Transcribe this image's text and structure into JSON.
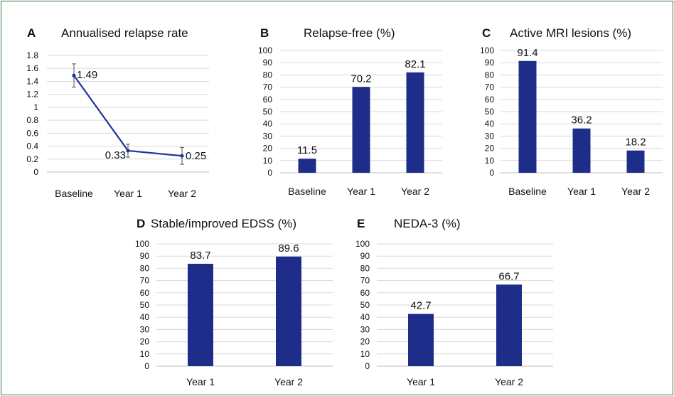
{
  "chart_data": [
    {
      "id": "A",
      "type": "line",
      "letter": "A",
      "title": "Annualised relapse rate",
      "categories": [
        "Baseline",
        "Year 1",
        "Year 2"
      ],
      "values": [
        1.49,
        0.33,
        0.25
      ],
      "error": [
        0.18,
        0.1,
        0.13
      ],
      "data_labels": [
        "1.49",
        "0.33",
        "0.25"
      ],
      "ylim": [
        0,
        1.8
      ],
      "yticks": [
        "0",
        "0.2",
        "0.4",
        "0.6",
        "0.8",
        "1",
        "1.2",
        "1.4",
        "1.6",
        "1.8"
      ],
      "grid": true,
      "color": "#2233a0"
    },
    {
      "id": "B",
      "type": "bar",
      "letter": "B",
      "title": "Relapse-free (%)",
      "categories": [
        "Baseline",
        "Year 1",
        "Year 2"
      ],
      "values": [
        11.5,
        70.2,
        82.1
      ],
      "data_labels": [
        "11.5",
        "70.2",
        "82.1"
      ],
      "ylim": [
        0,
        100
      ],
      "yticks": [
        "0",
        "10",
        "20",
        "30",
        "40",
        "50",
        "60",
        "70",
        "80",
        "90",
        "100"
      ],
      "grid": true,
      "color": "#1f2d8a"
    },
    {
      "id": "C",
      "type": "bar",
      "letter": "C",
      "title": "Active MRI lesions (%)",
      "categories": [
        "Baseline",
        "Year 1",
        "Year 2"
      ],
      "values": [
        91.4,
        36.2,
        18.2
      ],
      "data_labels": [
        "91.4",
        "36.2",
        "18.2"
      ],
      "ylim": [
        0,
        100
      ],
      "yticks": [
        "0",
        "10",
        "20",
        "30",
        "40",
        "50",
        "60",
        "70",
        "80",
        "90",
        "100"
      ],
      "grid": true,
      "color": "#1f2d8a"
    },
    {
      "id": "D",
      "type": "bar",
      "letter": "D",
      "title": "Stable/improved EDSS (%)",
      "categories": [
        "Year 1",
        "Year 2"
      ],
      "values": [
        83.7,
        89.6
      ],
      "data_labels": [
        "83.7",
        "89.6"
      ],
      "ylim": [
        0,
        100
      ],
      "yticks": [
        "0",
        "10",
        "20",
        "30",
        "40",
        "50",
        "60",
        "70",
        "80",
        "90",
        "100"
      ],
      "grid": true,
      "color": "#1f2d8a"
    },
    {
      "id": "E",
      "type": "bar",
      "letter": "E",
      "title": "NEDA-3 (%)",
      "categories": [
        "Year 1",
        "Year 2"
      ],
      "values": [
        42.7,
        66.7
      ],
      "data_labels": [
        "42.7",
        "66.7"
      ],
      "ylim": [
        0,
        100
      ],
      "yticks": [
        "0",
        "10",
        "20",
        "30",
        "40",
        "50",
        "60",
        "70",
        "80",
        "90",
        "100"
      ],
      "grid": true,
      "color": "#1f2d8a"
    }
  ]
}
